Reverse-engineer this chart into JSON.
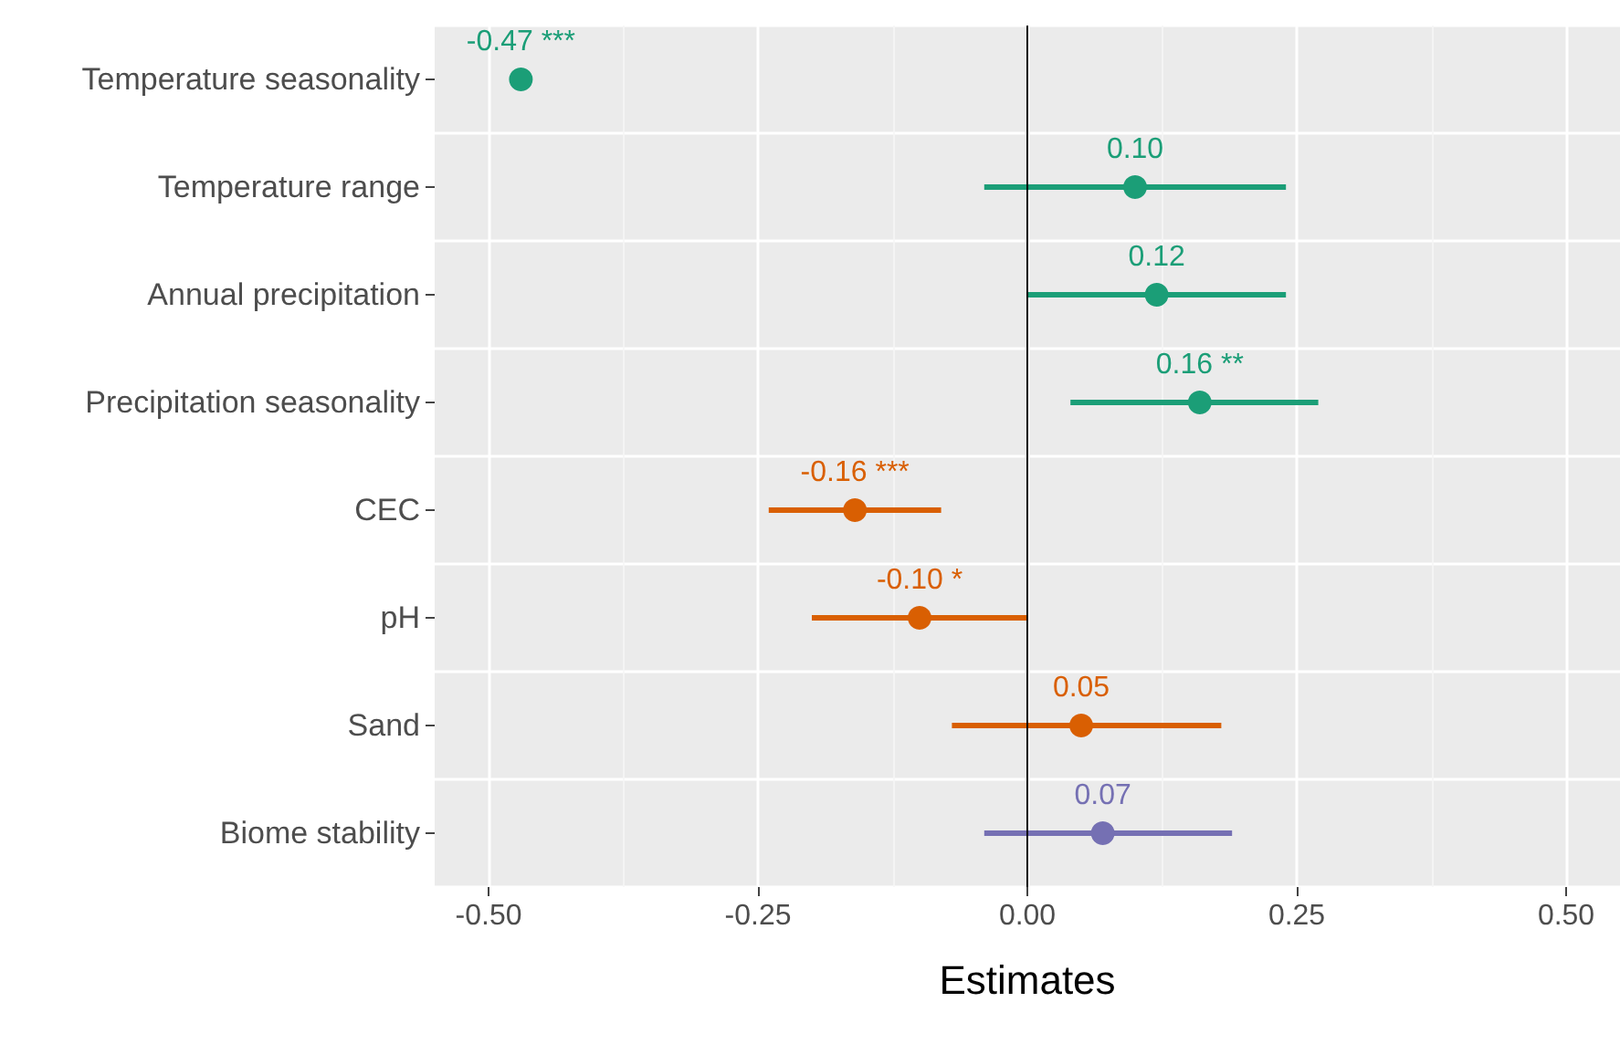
{
  "chart_data": {
    "type": "scatter",
    "orientation": "horizontal",
    "xlabel": "Estimates",
    "categories": [
      "Temperature seasonality",
      "Temperature range",
      "Annual precipitation",
      "Precipitation seasonality",
      "CEC",
      "pH",
      "Sand",
      "Biome stability"
    ],
    "values": [
      -0.47,
      0.1,
      0.12,
      0.16,
      -0.16,
      -0.1,
      0.05,
      0.07
    ],
    "value_labels": [
      "-0.47 ***",
      "0.10",
      "0.12",
      "0.16 **",
      "-0.16 ***",
      "-0.10 *",
      "0.05",
      "0.07"
    ],
    "errors": [
      null,
      [
        -0.04,
        0.24
      ],
      [
        0.0,
        0.24
      ],
      [
        0.04,
        0.27
      ],
      [
        -0.24,
        -0.08
      ],
      [
        -0.2,
        0.0
      ],
      [
        -0.07,
        0.18
      ],
      [
        -0.04,
        0.19
      ]
    ],
    "colors": [
      "#1b9e77",
      "#1b9e77",
      "#1b9e77",
      "#1b9e77",
      "#d95f02",
      "#d95f02",
      "#d95f02",
      "#7570b3"
    ],
    "xlim": [
      -0.55,
      0.55
    ],
    "xticks": [
      {
        "value": -0.5,
        "label": "-0.50"
      },
      {
        "value": -0.25,
        "label": "-0.25"
      },
      {
        "value": 0,
        "label": "0.00"
      },
      {
        "value": 0.25,
        "label": "0.25"
      },
      {
        "value": 0.5,
        "label": "0.50"
      }
    ],
    "ref_lines": [
      {
        "axis": "x",
        "value": 0,
        "color": "#000000"
      }
    ],
    "grid": true,
    "marker": "circle"
  }
}
